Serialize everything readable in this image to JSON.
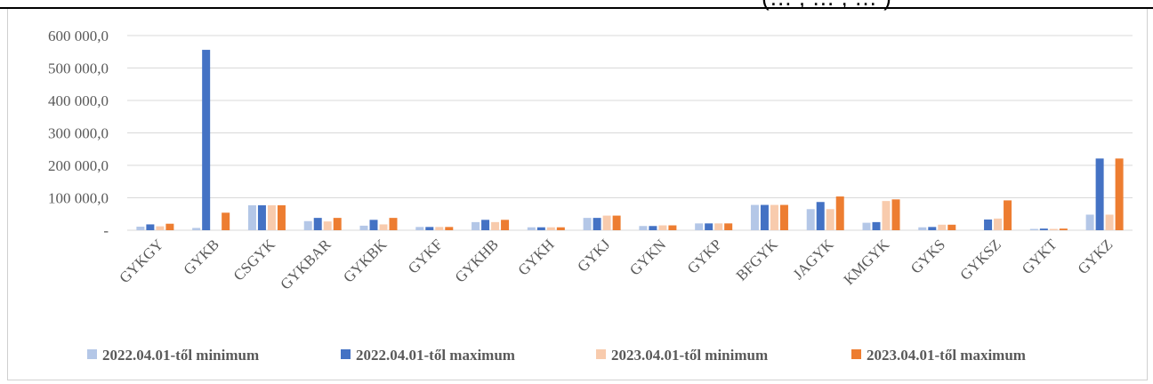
{
  "header": {
    "cutoff_title": "(… , … , … )"
  },
  "colors": {
    "min2022": "#b4c7e7",
    "max2022": "#4472c4",
    "min2023": "#f8cbad",
    "max2023": "#ed7d31",
    "grid": "#d9d9d9",
    "text": "#595959"
  },
  "chart_data": {
    "type": "bar",
    "categories": [
      "GYKGY",
      "GYKB",
      "CSGYK",
      "GYKBAR",
      "GYKBK",
      "GYKF",
      "GYKHB",
      "GYKH",
      "GYKJ",
      "GYKN",
      "GYKP",
      "BFGYK",
      "JAGYK",
      "KMGYK",
      "GYKS",
      "GYKSZ",
      "GYKT",
      "GYKZ"
    ],
    "series": [
      {
        "name": "2022.04.01-től minimum",
        "values": [
          11000,
          7000,
          77000,
          28000,
          14000,
          10000,
          25000,
          9000,
          38000,
          13000,
          21000,
          78000,
          65000,
          23000,
          9000,
          0,
          4000,
          48000
        ]
      },
      {
        "name": "2022.04.01-től maximum",
        "values": [
          18000,
          556000,
          77000,
          38000,
          32000,
          10000,
          32000,
          9000,
          38000,
          13000,
          21000,
          78000,
          87000,
          25000,
          10000,
          33000,
          5000,
          221000
        ]
      },
      {
        "name": "2023.04.01-től minimum",
        "values": [
          12000,
          0,
          77000,
          27000,
          18000,
          10000,
          25000,
          9000,
          45000,
          15000,
          21000,
          78000,
          65000,
          90000,
          17000,
          36000,
          4000,
          48000
        ]
      },
      {
        "name": "2023.04.01-től maximum",
        "values": [
          20000,
          54000,
          77000,
          38000,
          38000,
          10000,
          32000,
          9000,
          45000,
          15000,
          21000,
          78000,
          104000,
          95000,
          17000,
          92000,
          5000,
          221000
        ]
      }
    ],
    "yticks": [
      "-",
      "100 000,0",
      "200 000,0",
      "300 000,0",
      "400 000,0",
      "500 000,0",
      "600 000,0"
    ],
    "ylim": [
      0,
      600000
    ],
    "grid": true,
    "legend_position": "bottom"
  }
}
